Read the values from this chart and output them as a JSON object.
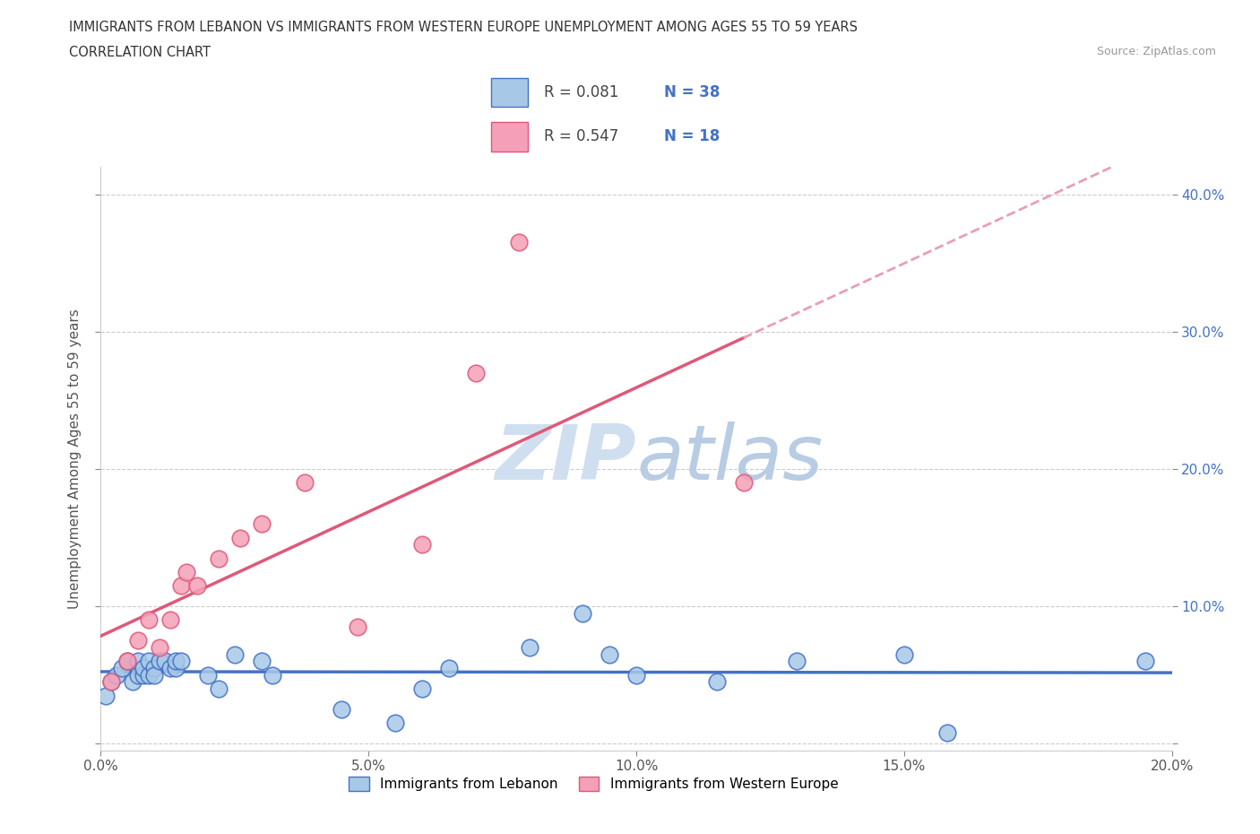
{
  "title_line1": "IMMIGRANTS FROM LEBANON VS IMMIGRANTS FROM WESTERN EUROPE UNEMPLOYMENT AMONG AGES 55 TO 59 YEARS",
  "title_line2": "CORRELATION CHART",
  "source_text": "Source: ZipAtlas.com",
  "ylabel": "Unemployment Among Ages 55 to 59 years",
  "xlim": [
    0.0,
    0.2
  ],
  "ylim": [
    0.0,
    0.42
  ],
  "xticks": [
    0.0,
    0.05,
    0.1,
    0.15,
    0.2
  ],
  "yticks": [
    0.0,
    0.1,
    0.2,
    0.3,
    0.4
  ],
  "color_blue": "#A8C8E8",
  "color_pink": "#F4A0B8",
  "color_blue_line": "#4472C4",
  "color_pink_line": "#E05878",
  "color_pink_dash": "#E8A0B0",
  "color_text_blue": "#4472C4",
  "watermark_color": "#D0DFF0",
  "lebanon_x": [
    0.001,
    0.002,
    0.003,
    0.004,
    0.005,
    0.006,
    0.007,
    0.007,
    0.008,
    0.008,
    0.009,
    0.009,
    0.01,
    0.01,
    0.011,
    0.012,
    0.013,
    0.014,
    0.014,
    0.015,
    0.02,
    0.022,
    0.025,
    0.03,
    0.032,
    0.045,
    0.055,
    0.06,
    0.065,
    0.08,
    0.09,
    0.095,
    0.1,
    0.115,
    0.13,
    0.15,
    0.158,
    0.195
  ],
  "lebanon_y": [
    0.035,
    0.045,
    0.05,
    0.055,
    0.06,
    0.045,
    0.05,
    0.06,
    0.05,
    0.055,
    0.05,
    0.06,
    0.055,
    0.05,
    0.06,
    0.06,
    0.055,
    0.055,
    0.06,
    0.06,
    0.05,
    0.04,
    0.065,
    0.06,
    0.05,
    0.025,
    0.015,
    0.04,
    0.055,
    0.07,
    0.095,
    0.065,
    0.05,
    0.045,
    0.06,
    0.065,
    0.008,
    0.06
  ],
  "western_x": [
    0.002,
    0.005,
    0.007,
    0.009,
    0.011,
    0.013,
    0.015,
    0.016,
    0.018,
    0.022,
    0.026,
    0.03,
    0.038,
    0.048,
    0.06,
    0.07,
    0.078,
    0.12
  ],
  "western_y": [
    0.045,
    0.06,
    0.075,
    0.09,
    0.07,
    0.09,
    0.115,
    0.125,
    0.115,
    0.135,
    0.15,
    0.16,
    0.19,
    0.085,
    0.145,
    0.27,
    0.365,
    0.19
  ]
}
